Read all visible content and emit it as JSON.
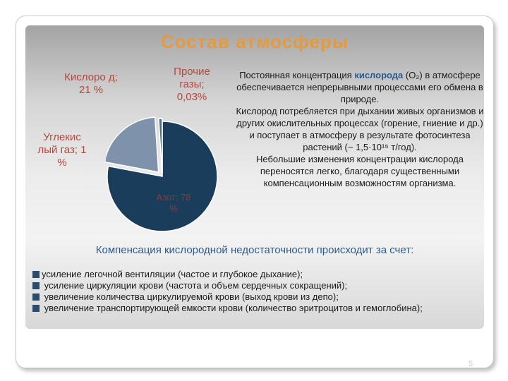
{
  "slide": {
    "title": "Состав атмосферы",
    "page_number": "5"
  },
  "pie": {
    "labels": {
      "oxygen": "Кислоро д; 21 %",
      "other": "Прочие газы; 0,03%",
      "co2": "Углекис лый газ; 1 %",
      "nitrogen": "Азот; 78 %"
    },
    "colors": {
      "nitrogen": "#1a3d5c",
      "oxygen": "#7f92ab",
      "co2": "#4d6a8a",
      "other": "#b5c3d4"
    },
    "data": [
      {
        "name": "Азот",
        "value": 78
      },
      {
        "name": "Кислород",
        "value": 21
      },
      {
        "name": "Углекислый газ",
        "value": 1
      },
      {
        "name": "Прочие газы",
        "value": 0.03
      }
    ]
  },
  "description": {
    "p1_before": "Постоянная концентрация ",
    "p1_highlight": "кислорода",
    "p1_after": " (O₂) в атмосфере обеспечивается непрерывными процессами его обмена в природе.",
    "p2": "Кислород потребляется при дыхании живых организмов и других окислительных процессах (горение, гниение и др.) и поступает в атмосферу в результате фотосинтеза растений (~ 1,5·10¹⁵ т/год).",
    "p3": "Небольшие изменения концентрации кислорода переносятся легко, благодаря существенными компенсационным возможностям организма."
  },
  "compensation": {
    "heading": "Компенсация кислородной недостаточности происходит за счет:",
    "items": [
      "усиление легочной вентиляции (частое и глубокое дыхание);",
      " усиление циркуляции крови (частота и объем сердечных сокращений);",
      " увеличение количества циркулируемой крови (выход крови из депо);",
      " увеличение транспортирующей емкости крови (количество эритроцитов и гемоглобина);"
    ]
  }
}
